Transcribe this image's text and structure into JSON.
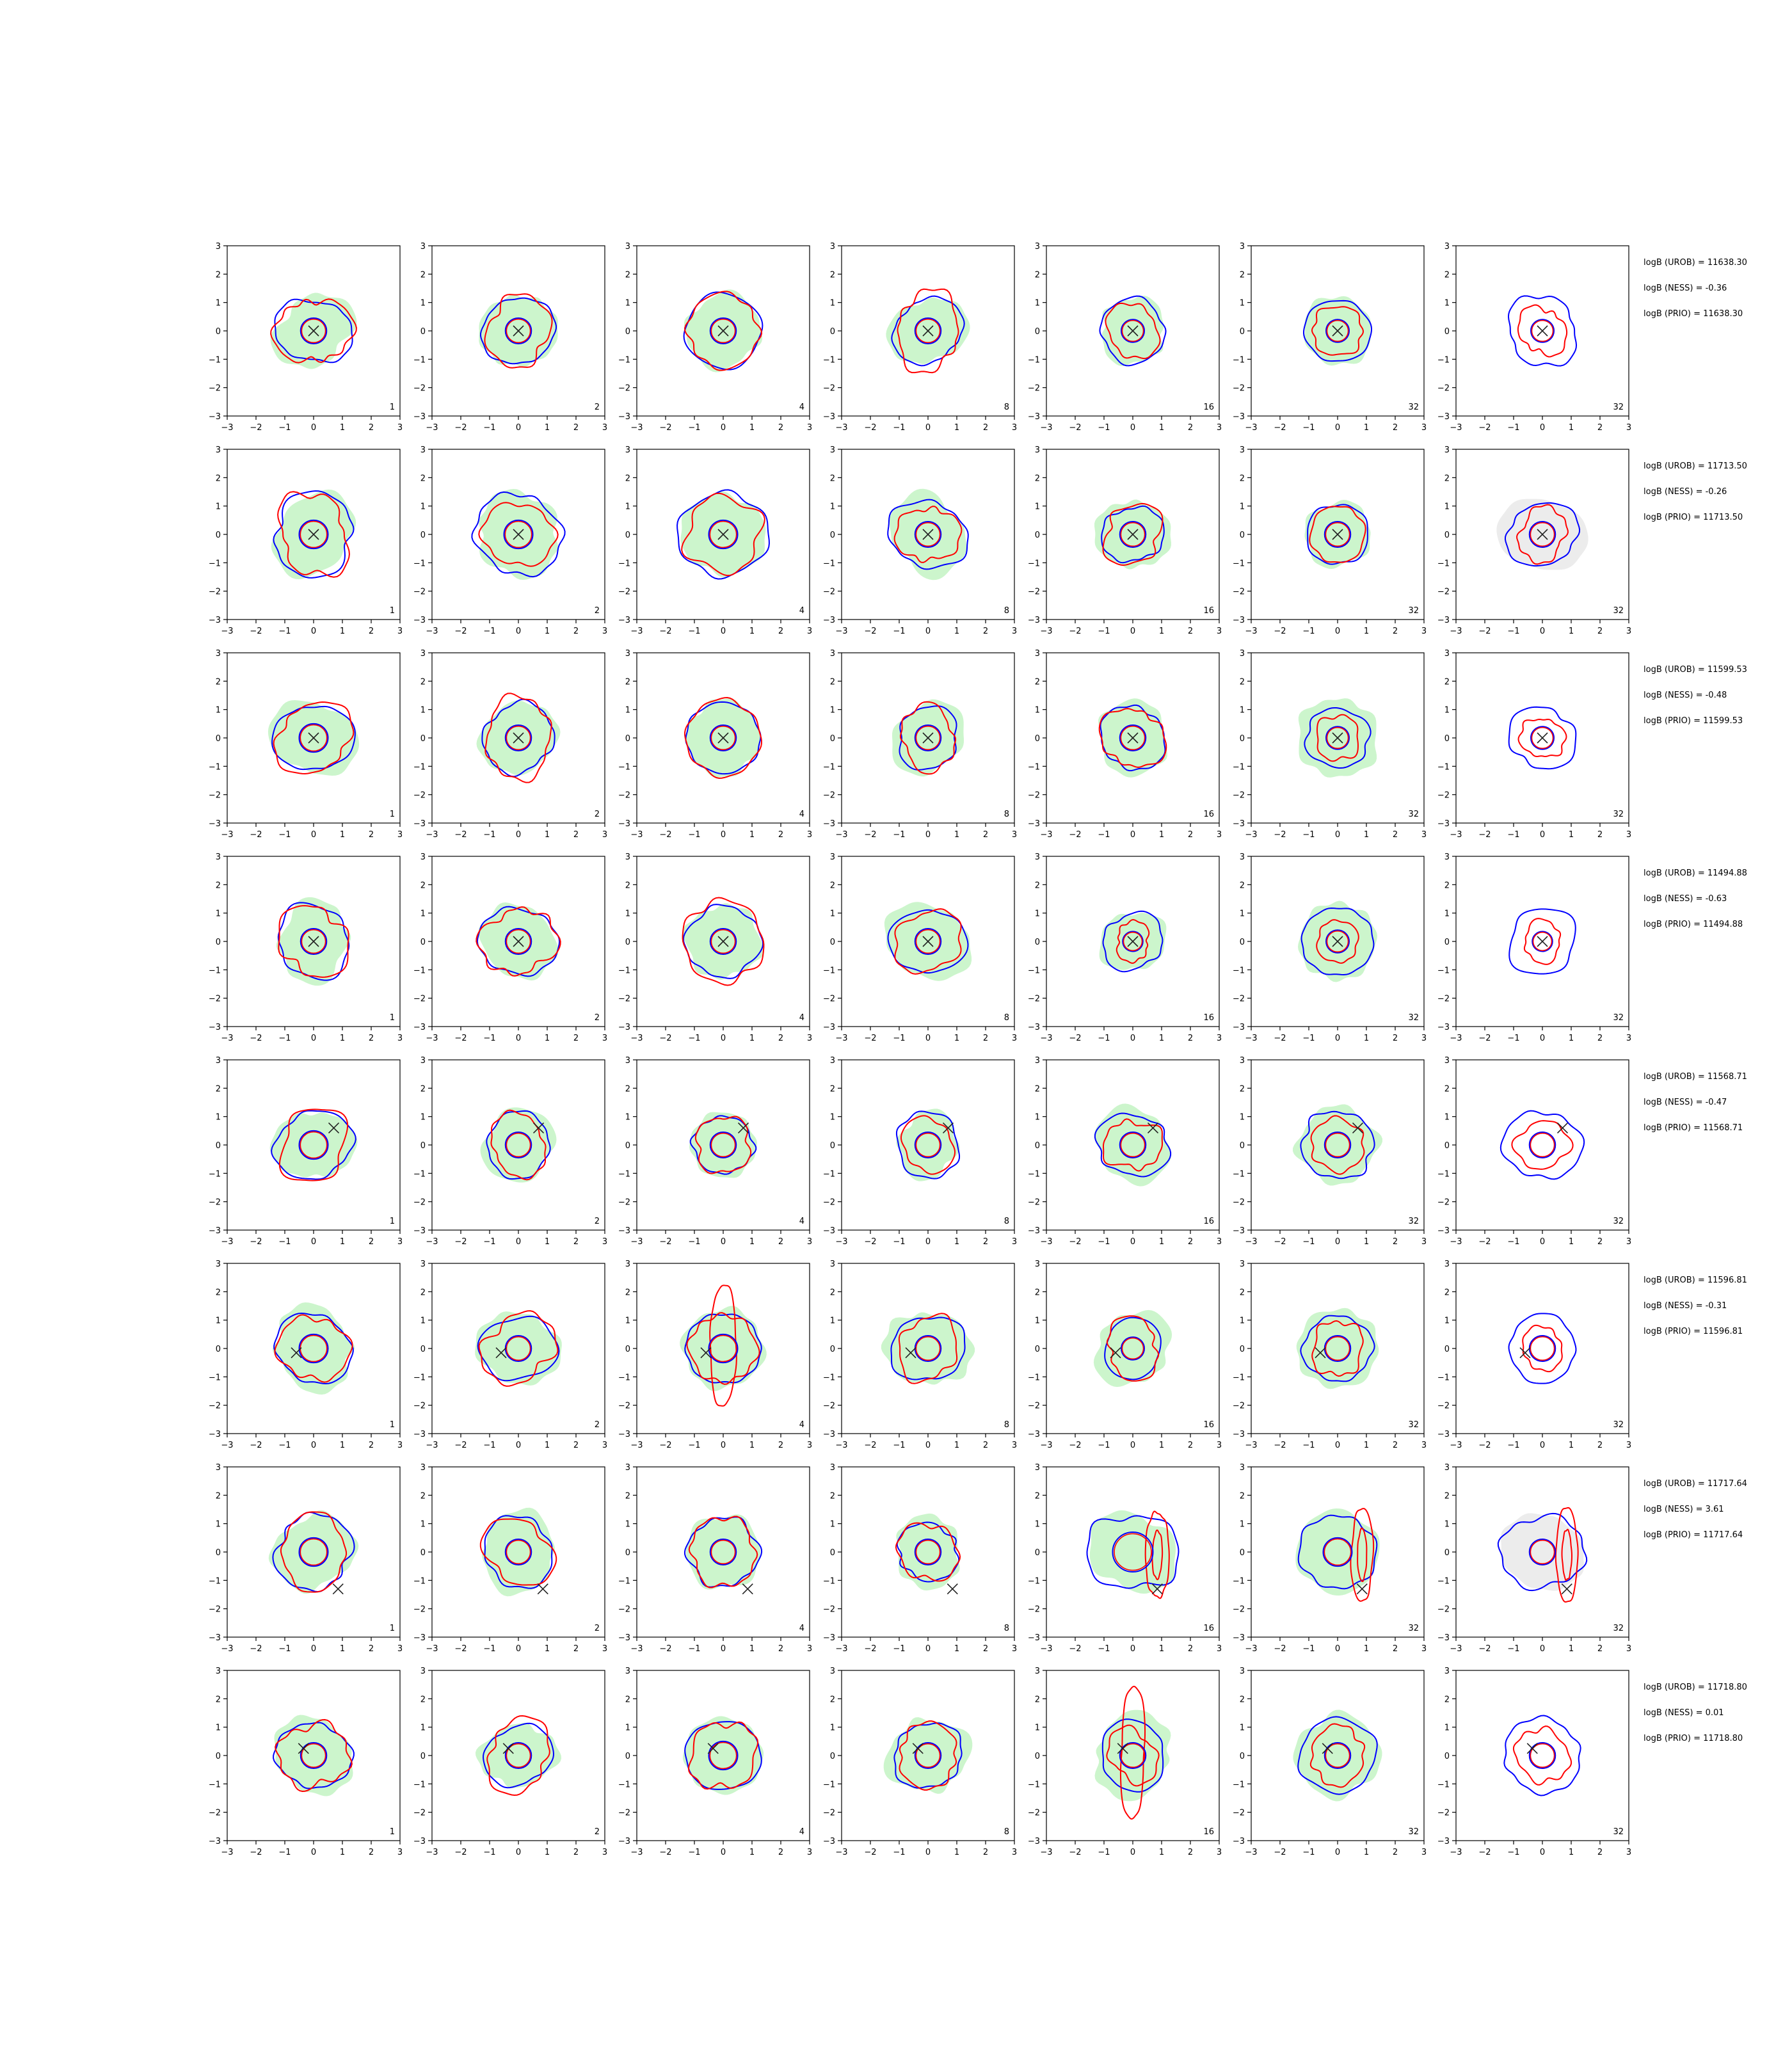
{
  "chart_data": {
    "type": "contour-grid",
    "layout": {
      "rows": 8,
      "cols": 7
    },
    "xlim": [
      -3,
      3
    ],
    "ylim": [
      -3,
      3
    ],
    "x_ticks": [
      "−3",
      "−2",
      "−1",
      "0",
      "1",
      "2",
      "3"
    ],
    "y_ticks": [
      "3",
      "2",
      "1",
      "0",
      "−1",
      "−2",
      "−3"
    ],
    "column_labels": [
      "1",
      "2",
      "4",
      "8",
      "16",
      "32",
      "32"
    ],
    "colors": {
      "blue_contour": "#0000ff",
      "red_contour": "#ff0000",
      "green_fill": "#ccf5cc",
      "gray_fill": "#ececec",
      "marker": "#222222"
    },
    "rows": [
      {
        "marker": [
          0,
          0
        ],
        "stats": [
          "logB (UROB) = 11638.30",
          "logB (NESS) = -0.36",
          "logB (PRIO) = 11638.30"
        ],
        "panels": [
          {
            "blue_outer": 1.25,
            "red_outer": 1.25,
            "green": 1.3,
            "inner": 0.45
          },
          {
            "blue_outer": 1.25,
            "red_outer": 1.2,
            "green": 1.3,
            "inner": 0.45
          },
          {
            "blue_outer": 1.35,
            "red_outer": 1.3,
            "green": 1.3,
            "inner": 0.45
          },
          {
            "blue_outer": 1.2,
            "red_outer": 1.25,
            "green": 1.25,
            "inner": 0.45
          },
          {
            "blue_outer": 1.15,
            "red_outer": 0.95,
            "green": 1.15,
            "inner": 0.4
          },
          {
            "blue_outer": 1.15,
            "red_outer": 0.9,
            "green": 1.2,
            "inner": 0.4
          },
          {
            "blue_outer": 1.25,
            "red_outer": 0.85,
            "green": 0,
            "gray": 0,
            "inner": 0.4
          }
        ]
      },
      {
        "marker": [
          0,
          0
        ],
        "stats": [
          "logB (UROB) = 11713.50",
          "logB (NESS) = -0.26",
          "logB (PRIO) = 11713.50"
        ],
        "panels": [
          {
            "blue_outer": 1.45,
            "red_outer": 1.35,
            "green": 1.4,
            "inner": 0.5
          },
          {
            "blue_outer": 1.5,
            "red_outer": 1.2,
            "green": 1.45,
            "inner": 0.5
          },
          {
            "blue_outer": 1.55,
            "red_outer": 1.35,
            "green": 1.45,
            "inner": 0.5
          },
          {
            "blue_outer": 1.3,
            "red_outer": 1.05,
            "green": 1.35,
            "inner": 0.45
          },
          {
            "blue_outer": 1.05,
            "red_outer": 1.05,
            "green": 1.25,
            "inner": 0.45
          },
          {
            "blue_outer": 1.1,
            "red_outer": 1.0,
            "green": 1.15,
            "inner": 0.45
          },
          {
            "blue_outer": 1.2,
            "red_outer": 0.9,
            "green": 0,
            "gray": 1.4,
            "inner": 0.45
          }
        ]
      },
      {
        "marker": [
          0,
          0
        ],
        "stats": [
          "logB (UROB) = 11599.53",
          "logB (NESS) = -0.48",
          "logB (PRIO) = 11599.53"
        ],
        "panels": [
          {
            "blue_outer": 1.3,
            "red_outer": 1.3,
            "green": 1.4,
            "inner": 0.5
          },
          {
            "blue_outer": 1.25,
            "red_outer": 1.3,
            "green": 1.3,
            "inner": 0.45
          },
          {
            "blue_outer": 1.3,
            "red_outer": 1.35,
            "green": 1.3,
            "inner": 0.45
          },
          {
            "blue_outer": 1.1,
            "red_outer": 1.05,
            "green": 1.25,
            "inner": 0.45
          },
          {
            "blue_outer": 1.15,
            "red_outer": 1.1,
            "green": 1.25,
            "inner": 0.45
          },
          {
            "blue_outer": 1.1,
            "red_outer": 0.8,
            "green": 1.4,
            "inner": 0.4
          },
          {
            "blue_outer": 1.15,
            "red_outer": 0.75,
            "green": 0,
            "gray": 0,
            "inner": 0.4
          }
        ]
      },
      {
        "marker": [
          0,
          0
        ],
        "stats": [
          "logB (UROB) = 11494.88",
          "logB (NESS) = -0.63",
          "logB (PRIO) = 11494.88"
        ],
        "panels": [
          {
            "blue_outer": 1.3,
            "red_outer": 1.25,
            "green": 1.3,
            "inner": 0.45
          },
          {
            "blue_outer": 1.3,
            "red_outer": 1.25,
            "green": 1.3,
            "inner": 0.45
          },
          {
            "blue_outer": 1.3,
            "red_outer": 1.45,
            "green": 1.3,
            "inner": 0.45
          },
          {
            "blue_outer": 1.25,
            "red_outer": 1.15,
            "green": 1.4,
            "inner": 0.45
          },
          {
            "blue_outer": 1.05,
            "red_outer": 0.65,
            "green": 1.1,
            "inner": 0.35
          },
          {
            "blue_outer": 1.25,
            "red_outer": 0.75,
            "green": 1.35,
            "inner": 0.4
          },
          {
            "blue_outer": 1.2,
            "red_outer": 0.7,
            "green": 0,
            "gray": 0,
            "inner": 0.35
          }
        ]
      },
      {
        "marker": [
          0.7,
          0.6
        ],
        "stats": [
          "logB (UROB) = 11568.71",
          "logB (NESS) = -0.47",
          "logB (PRIO) = 11568.71"
        ],
        "panels": [
          {
            "blue_outer": 1.3,
            "red_outer": 1.25,
            "green": 1.3,
            "inner": 0.5
          },
          {
            "blue_outer": 1.15,
            "red_outer": 1.05,
            "green": 1.25,
            "inner": 0.45
          },
          {
            "blue_outer": 1.05,
            "red_outer": 1.0,
            "green": 1.15,
            "inner": 0.45
          },
          {
            "blue_outer": 1.15,
            "red_outer": 0.95,
            "green": 1.1,
            "inner": 0.45
          },
          {
            "blue_outer": 1.2,
            "red_outer": 0.95,
            "green": 1.3,
            "inner": 0.45
          },
          {
            "blue_outer": 1.25,
            "red_outer": 0.95,
            "green": 1.35,
            "inner": 0.45
          },
          {
            "blue_outer": 1.3,
            "red_outer": 0.9,
            "green": 0,
            "gray": 0,
            "inner": 0.45
          }
        ]
      },
      {
        "marker": [
          -0.6,
          -0.15
        ],
        "stats": [
          "logB (UROB) = 11596.81",
          "logB (NESS) = -0.31",
          "logB (PRIO) = 11596.81"
        ],
        "panels": [
          {
            "blue_outer": 1.3,
            "red_outer": 1.2,
            "green": 1.4,
            "inner": 0.5
          },
          {
            "blue_outer": 1.25,
            "red_outer": 1.25,
            "green": 1.35,
            "inner": 0.45
          },
          {
            "blue_outer": 1.3,
            "red_outer": 1.2,
            "green": 1.4,
            "inner": 0.5,
            "red_extra": "vertical"
          },
          {
            "blue_outer": 1.25,
            "red_outer": 1.1,
            "green": 1.4,
            "inner": 0.45
          },
          {
            "blue_outer": 1.05,
            "red_outer": 1.0,
            "green": 1.3,
            "inner": 0.4
          },
          {
            "blue_outer": 1.2,
            "red_outer": 0.95,
            "green": 1.4,
            "inner": 0.45
          },
          {
            "blue_outer": 1.2,
            "red_outer": 0.75,
            "green": 0,
            "gray": 0,
            "inner": 0.45
          }
        ]
      },
      {
        "marker": [
          0.85,
          -1.3
        ],
        "stats": [
          "logB (UROB) = 11717.64",
          "logB (NESS) = 3.61",
          "logB (PRIO) = 11717.64"
        ],
        "panels": [
          {
            "blue_outer": 1.35,
            "red_outer": 1.25,
            "green": 1.35,
            "inner": 0.5
          },
          {
            "blue_outer": 1.25,
            "red_outer": 1.2,
            "green": 1.35,
            "inner": 0.45
          },
          {
            "blue_outer": 1.25,
            "red_outer": 1.2,
            "green": 1.3,
            "inner": 0.45
          },
          {
            "blue_outer": 1.05,
            "red_outer": 1.05,
            "green": 1.2,
            "inner": 0.45
          },
          {
            "blue_outer": 1.5,
            "red_outer": 0,
            "green": 1.45,
            "inner": 0.7,
            "red_extra": "side"
          },
          {
            "blue_outer": 1.35,
            "red_outer": 0,
            "green": 1.45,
            "inner": 0.5,
            "red_extra": "side"
          },
          {
            "blue_outer": 1.4,
            "red_outer": 0,
            "green": 0,
            "gray": 1.4,
            "inner": 0.45,
            "red_extra": "side"
          }
        ]
      },
      {
        "marker": [
          -0.35,
          0.25
        ],
        "stats": [
          "logB (UROB) = 11718.80",
          "logB (NESS) = 0.01",
          "logB (PRIO) = 11718.80"
        ],
        "panels": [
          {
            "blue_outer": 1.25,
            "red_outer": 1.2,
            "green": 1.35,
            "inner": 0.45
          },
          {
            "blue_outer": 1.15,
            "red_outer": 1.2,
            "green": 1.2,
            "inner": 0.45
          },
          {
            "blue_outer": 1.3,
            "red_outer": 1.2,
            "green": 1.35,
            "inner": 0.5
          },
          {
            "blue_outer": 1.2,
            "red_outer": 1.1,
            "green": 1.35,
            "inner": 0.45
          },
          {
            "blue_outer": 1.2,
            "red_outer": 0.9,
            "green": 1.4,
            "inner": 0.45,
            "red_extra": "vertical"
          },
          {
            "blue_outer": 1.35,
            "red_outer": 1.0,
            "green": 1.45,
            "inner": 0.45
          },
          {
            "blue_outer": 1.35,
            "red_outer": 0.95,
            "green": 0,
            "gray": 0,
            "inner": 0.45
          }
        ]
      }
    ]
  }
}
